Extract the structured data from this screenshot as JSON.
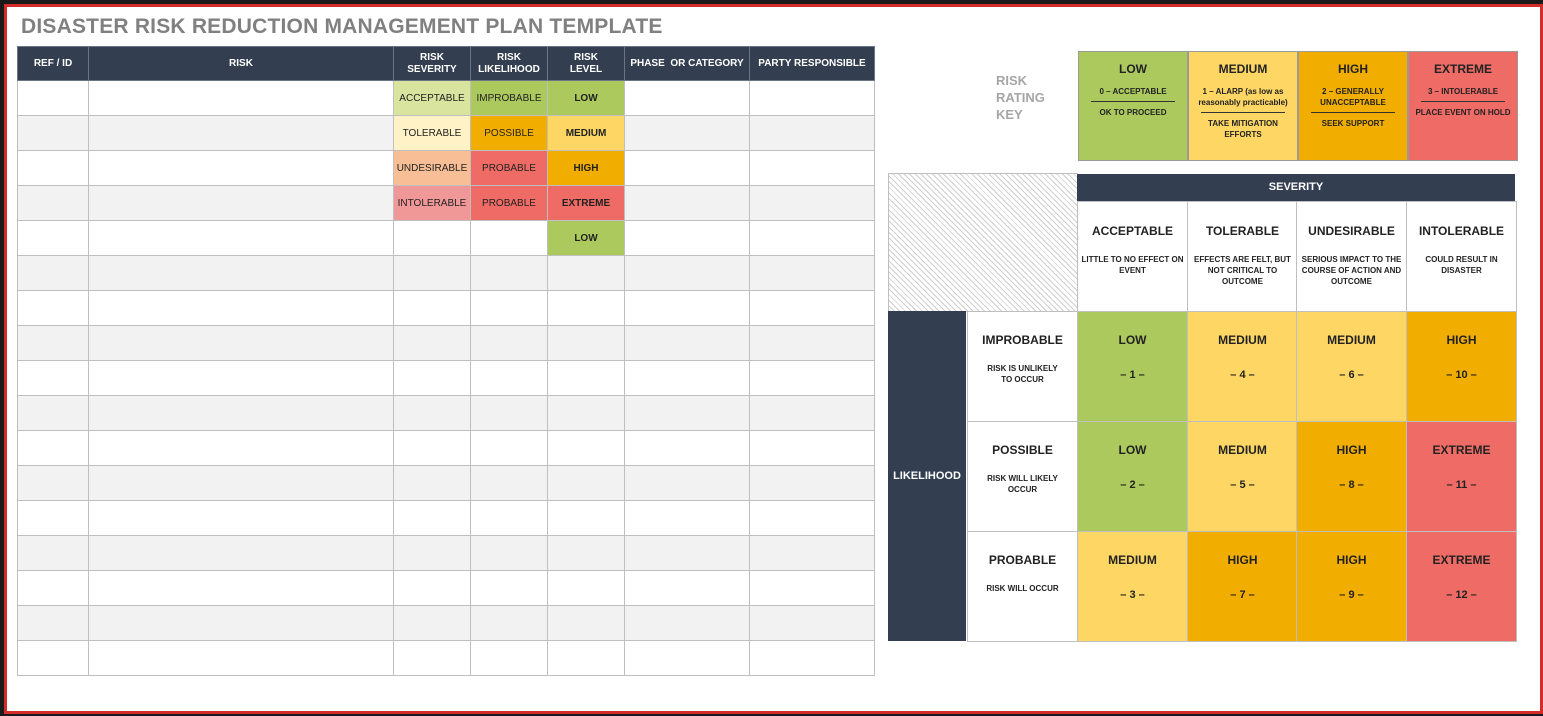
{
  "title": "DISASTER RISK REDUCTION MANAGEMENT PLAN TEMPLATE",
  "table": {
    "headers": [
      "REF / ID",
      "RISK",
      "RISK SEVERITY",
      "RISK LIKELIHOOD",
      "RISK LEVEL",
      "PHASE  OR CATEGORY",
      "PARTY RESPONSIBLE"
    ],
    "rows": [
      {
        "severity": "ACCEPTABLE",
        "likelihood": "IMPROBABLE",
        "level": "LOW"
      },
      {
        "severity": "TOLERABLE",
        "likelihood": "POSSIBLE",
        "level": "MEDIUM"
      },
      {
        "severity": "UNDESIRABLE",
        "likelihood": "PROBABLE",
        "level": "HIGH"
      },
      {
        "severity": "INTOLERABLE",
        "likelihood": "PROBABLE",
        "level": "EXTREME"
      },
      {
        "severity": "",
        "likelihood": "",
        "level": "LOW"
      }
    ],
    "empty_row_count": 12
  },
  "rating_key": {
    "label": "RISK RATING KEY",
    "levels": [
      {
        "title": "LOW",
        "score": "0 – ACCEPTABLE",
        "action": "OK TO PROCEED",
        "color": "#acc95e"
      },
      {
        "title": "MEDIUM",
        "score": "1 – ALARP (as low as reasonably practicable)",
        "action": "TAKE MITIGATION EFFORTS",
        "color": "#fdd664"
      },
      {
        "title": "HIGH",
        "score": "2 – GENERALLY UNACCEPTABLE",
        "action": "SEEK SUPPORT",
        "color": "#f2ae00"
      },
      {
        "title": "EXTREME",
        "score": "3 – INTOLERABLE",
        "action": "PLACE EVENT ON HOLD",
        "color": "#ef6b65"
      }
    ]
  },
  "matrix": {
    "severity_label": "SEVERITY",
    "likelihood_label": "LIKELIHOOD",
    "severity": [
      {
        "title": "ACCEPTABLE",
        "desc": "LITTLE TO NO EFFECT ON EVENT"
      },
      {
        "title": "TOLERABLE",
        "desc": "EFFECTS ARE FELT, BUT NOT CRITICAL TO OUTCOME"
      },
      {
        "title": "UNDESIRABLE",
        "desc": "SERIOUS IMPACT TO THE COURSE OF ACTION AND OUTCOME"
      },
      {
        "title": "INTOLERABLE",
        "desc": "COULD RESULT IN DISASTER"
      }
    ],
    "likelihood": [
      {
        "title": "IMPROBABLE",
        "desc": "RISK IS UNLIKELY TO OCCUR"
      },
      {
        "title": "POSSIBLE",
        "desc": "RISK WILL LIKELY OCCUR"
      },
      {
        "title": "PROBABLE",
        "desc": "RISK WILL OCCUR"
      }
    ],
    "cells": [
      [
        {
          "level": "LOW",
          "num": "– 1 –"
        },
        {
          "level": "MEDIUM",
          "num": "– 4 –"
        },
        {
          "level": "MEDIUM",
          "num": "– 6 –"
        },
        {
          "level": "HIGH",
          "num": "– 10 –"
        }
      ],
      [
        {
          "level": "LOW",
          "num": "– 2 –"
        },
        {
          "level": "MEDIUM",
          "num": "– 5 –"
        },
        {
          "level": "HIGH",
          "num": "– 8 –"
        },
        {
          "level": "EXTREME",
          "num": "– 11 –"
        }
      ],
      [
        {
          "level": "MEDIUM",
          "num": "– 3 –"
        },
        {
          "level": "HIGH",
          "num": "– 7 –"
        },
        {
          "level": "HIGH",
          "num": "– 9 –"
        },
        {
          "level": "EXTREME",
          "num": "– 12 –"
        }
      ]
    ]
  }
}
